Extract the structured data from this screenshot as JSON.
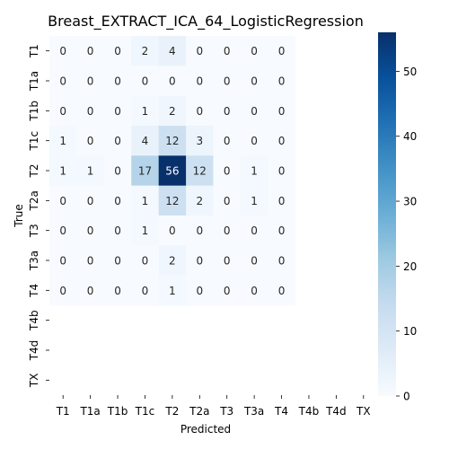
{
  "chart_data": {
    "type": "heatmap",
    "title": "Breast_EXTRACT_ICA_64_LogisticRegression",
    "xlabel": "Predicted",
    "ylabel": "True",
    "x_categories": [
      "T1",
      "T1a",
      "T1b",
      "T1c",
      "T2",
      "T2a",
      "T3",
      "T3a",
      "T4",
      "T4b",
      "T4d",
      "TX"
    ],
    "y_categories": [
      "T1",
      "T1a",
      "T1b",
      "T1c",
      "T2",
      "T2a",
      "T3",
      "T3a",
      "T4",
      "T4b",
      "T4d",
      "TX"
    ],
    "values": [
      [
        0,
        0,
        0,
        2,
        4,
        0,
        0,
        0,
        0,
        null,
        null,
        null
      ],
      [
        0,
        0,
        0,
        0,
        0,
        0,
        0,
        0,
        0,
        null,
        null,
        null
      ],
      [
        0,
        0,
        0,
        1,
        2,
        0,
        0,
        0,
        0,
        null,
        null,
        null
      ],
      [
        1,
        0,
        0,
        4,
        12,
        3,
        0,
        0,
        0,
        null,
        null,
        null
      ],
      [
        1,
        1,
        0,
        17,
        56,
        12,
        0,
        1,
        0,
        null,
        null,
        null
      ],
      [
        0,
        0,
        0,
        1,
        12,
        2,
        0,
        1,
        0,
        null,
        null,
        null
      ],
      [
        0,
        0,
        0,
        1,
        0,
        0,
        0,
        0,
        0,
        null,
        null,
        null
      ],
      [
        0,
        0,
        0,
        0,
        2,
        0,
        0,
        0,
        0,
        null,
        null,
        null
      ],
      [
        0,
        0,
        0,
        0,
        1,
        0,
        0,
        0,
        0,
        null,
        null,
        null
      ],
      [
        null,
        null,
        null,
        null,
        null,
        null,
        null,
        null,
        null,
        null,
        null,
        null
      ],
      [
        null,
        null,
        null,
        null,
        null,
        null,
        null,
        null,
        null,
        null,
        null,
        null
      ],
      [
        null,
        null,
        null,
        null,
        null,
        null,
        null,
        null,
        null,
        null,
        null,
        null
      ]
    ],
    "colormap": "Blues",
    "colorbar": {
      "min": 0,
      "max": 56,
      "ticks": [
        0,
        10,
        20,
        30,
        40,
        50
      ]
    }
  }
}
